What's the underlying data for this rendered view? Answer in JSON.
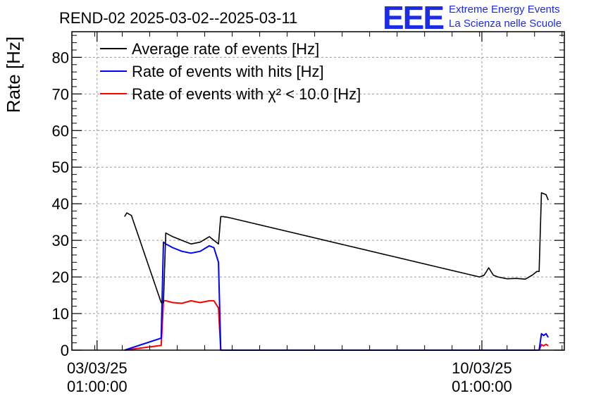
{
  "chart_data": {
    "type": "line",
    "title": "REND-02 2025-03-02--2025-03-11",
    "ylabel": "Rate [Hz]",
    "xlabel": "",
    "ylim": [
      0,
      87
    ],
    "yticks": [
      0,
      10,
      20,
      30,
      40,
      50,
      60,
      70,
      80
    ],
    "xlim": [
      "2025-03-02T14:00:00",
      "2025-03-11T13:00:00"
    ],
    "xticks": [
      {
        "at": "2025-03-03T01:00:00",
        "date": "03/03/25",
        "time": "01:00:00"
      },
      {
        "at": "2025-03-10T01:00:00",
        "date": "10/03/25",
        "time": "01:00:00"
      }
    ],
    "grid": true,
    "legend_position": "top-left",
    "series": [
      {
        "name": "Average rate of events [Hz]",
        "color": "#000000",
        "x": [
          "2025-03-03T13:00:00",
          "2025-03-03T14:00:00",
          "2025-03-03T16:00:00",
          "2025-03-04T05:00:00",
          "2025-03-04T06:00:00",
          "2025-03-04T07:00:00",
          "2025-03-04T10:00:00",
          "2025-03-04T14:00:00",
          "2025-03-04T18:00:00",
          "2025-03-04T22:00:00",
          "2025-03-05T02:00:00",
          "2025-03-05T04:00:00",
          "2025-03-05T06:00:00",
          "2025-03-05T07:00:00",
          "2025-03-05T08:00:00",
          "2025-03-05T09:00:00",
          "2025-03-05T10:00:00",
          "2025-03-10T00:00:00",
          "2025-03-10T02:00:00",
          "2025-03-10T04:00:00",
          "2025-03-10T06:00:00",
          "2025-03-10T08:00:00",
          "2025-03-10T12:00:00",
          "2025-03-10T16:00:00",
          "2025-03-10T20:00:00",
          "2025-03-10T23:00:00",
          "2025-03-11T01:00:00",
          "2025-03-11T02:00:00",
          "2025-03-11T03:00:00",
          "2025-03-11T05:00:00",
          "2025-03-11T06:00:00"
        ],
        "y": [
          36.5,
          37.5,
          36.8,
          13.0,
          13.0,
          32.0,
          31.0,
          30.0,
          29.0,
          29.5,
          31.0,
          30.0,
          29.0,
          36.5,
          36.5,
          36.4,
          36.3,
          20.0,
          20.5,
          22.5,
          20.5,
          20.0,
          19.5,
          19.6,
          19.4,
          20.5,
          21.5,
          21.5,
          43.0,
          42.5,
          41.0
        ]
      },
      {
        "name": "Rate of events with hits [Hz]",
        "color": "#0000ff",
        "x": [
          "2025-03-03T13:00:00",
          "2025-03-04T05:00:00",
          "2025-03-04T06:00:00",
          "2025-03-04T07:00:00",
          "2025-03-04T10:00:00",
          "2025-03-04T14:00:00",
          "2025-03-04T18:00:00",
          "2025-03-04T22:00:00",
          "2025-03-05T02:00:00",
          "2025-03-05T04:00:00",
          "2025-03-05T06:00:00",
          "2025-03-05T07:00:00",
          "2025-03-11T02:00:00",
          "2025-03-11T03:00:00",
          "2025-03-11T04:00:00",
          "2025-03-11T05:00:00",
          "2025-03-11T06:00:00"
        ],
        "y": [
          0.0,
          3.3,
          29.5,
          29.0,
          28.0,
          27.0,
          26.5,
          27.0,
          28.5,
          28.0,
          24.0,
          0.0,
          0.0,
          4.5,
          4.0,
          4.5,
          3.5
        ]
      },
      {
        "name": "Rate of events with χ² < 10.0 [Hz]",
        "color": "#ff0000",
        "x": [
          "2025-03-03T13:00:00",
          "2025-03-04T05:00:00",
          "2025-03-04T06:00:00",
          "2025-03-04T07:00:00",
          "2025-03-04T10:00:00",
          "2025-03-04T14:00:00",
          "2025-03-04T18:00:00",
          "2025-03-04T22:00:00",
          "2025-03-05T02:00:00",
          "2025-03-05T04:00:00",
          "2025-03-05T06:00:00",
          "2025-03-05T07:00:00",
          "2025-03-11T02:00:00",
          "2025-03-11T03:00:00",
          "2025-03-11T04:00:00",
          "2025-03-11T05:00:00",
          "2025-03-11T06:00:00"
        ],
        "y": [
          0.0,
          1.3,
          13.5,
          13.5,
          13.0,
          12.8,
          13.5,
          13.0,
          13.5,
          13.5,
          11.5,
          0.0,
          0.0,
          1.5,
          1.2,
          1.6,
          1.2
        ]
      }
    ]
  },
  "logo": {
    "mark": "EEE",
    "line1": "Extreme Energy Events",
    "line2": "La Scienza nelle Scuole"
  }
}
